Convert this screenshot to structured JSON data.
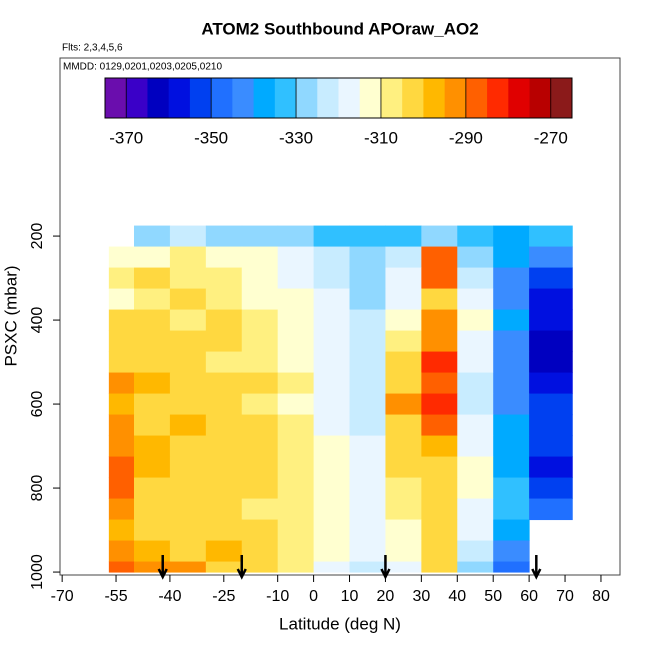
{
  "chart_data": {
    "type": "heatmap",
    "title": "ATOM2 Southbound APOraw_AO2",
    "subtitle": "Flts: 2,3,4,5,6",
    "annotation": "MMDD: 0129,0201,0203,0205,0210",
    "xlabel": "Latitude (deg N)",
    "ylabel": "PSXC (mbar)",
    "xlim": [
      -70.6,
      85.3
    ],
    "ylim": [
      1007,
      -224
    ],
    "xticks": [
      -70,
      -55,
      -40,
      -25,
      -10,
      0,
      10,
      20,
      30,
      40,
      50,
      60,
      70,
      80
    ],
    "yticks": [
      200,
      400,
      600,
      800,
      1000
    ],
    "x_edges": [
      -57,
      -50,
      -40,
      -30,
      -20,
      -10,
      0,
      10,
      20,
      30,
      40,
      50,
      60,
      72
    ],
    "y_edges": [
      175,
      225,
      275,
      325,
      375,
      425,
      475,
      525,
      575,
      625,
      675,
      725,
      775,
      825,
      875,
      925,
      975,
      1000
    ],
    "z": [
      [
        null,
        -330,
        -325,
        -330,
        -330,
        -330,
        -335,
        -335,
        -335,
        -330,
        -335,
        -340,
        -335
      ],
      [
        -315,
        -312,
        -310,
        -312,
        -315,
        -318,
        -325,
        -330,
        -325,
        -290,
        -330,
        -340,
        -345
      ],
      [
        -310,
        -305,
        -308,
        -310,
        -315,
        -318,
        -322,
        -328,
        -320,
        -288,
        -325,
        -345,
        -355
      ],
      [
        -315,
        -310,
        -305,
        -308,
        -312,
        -315,
        -320,
        -328,
        -318,
        -300,
        -320,
        -345,
        -360
      ],
      [
        -300,
        -305,
        -308,
        -305,
        -310,
        -312,
        -318,
        -325,
        -315,
        -295,
        -315,
        -340,
        -360
      ],
      [
        -302,
        -300,
        -305,
        -305,
        -308,
        -315,
        -318,
        -322,
        -310,
        -292,
        -318,
        -345,
        -365
      ],
      [
        -300,
        -302,
        -303,
        -308,
        -310,
        -312,
        -320,
        -325,
        -305,
        -285,
        -320,
        -345,
        -362
      ],
      [
        -295,
        -298,
        -302,
        -300,
        -305,
        -310,
        -318,
        -322,
        -300,
        -290,
        -325,
        -345,
        -360
      ],
      [
        -298,
        -300,
        -302,
        -305,
        -308,
        -312,
        -320,
        -325,
        -295,
        -282,
        -325,
        -342,
        -355
      ],
      [
        -295,
        -300,
        -298,
        -300,
        -303,
        -308,
        -318,
        -322,
        -300,
        -290,
        -320,
        -340,
        -355
      ],
      [
        -293,
        -297,
        -300,
        -300,
        -302,
        -308,
        -315,
        -320,
        -302,
        -298,
        -318,
        -338,
        -355
      ],
      [
        -288,
        -298,
        -300,
        -300,
        -302,
        -308,
        -315,
        -318,
        -305,
        -300,
        -315,
        -338,
        -358
      ],
      [
        -290,
        -300,
        -302,
        -303,
        -305,
        -310,
        -315,
        -320,
        -308,
        -302,
        -315,
        -335,
        -352
      ],
      [
        -295,
        -302,
        -303,
        -302,
        -306,
        -310,
        -315,
        -320,
        -310,
        -305,
        -318,
        -335,
        -350
      ],
      [
        -298,
        -302,
        -305,
        -303,
        -305,
        -310,
        -312,
        -318,
        -312,
        -305,
        -320,
        -340,
        null
      ],
      [
        -295,
        -298,
        -300,
        -298,
        -300,
        -308,
        -315,
        -320,
        -315,
        -300,
        -325,
        -345,
        null
      ],
      [
        -290,
        -292,
        -295,
        -300,
        -302,
        -310,
        -318,
        -322,
        -318,
        -305,
        -330,
        -350,
        null
      ]
    ],
    "clim": [
      -375,
      -265
    ],
    "colors": [
      "#6a0dad",
      "#3a00c8",
      "#0000c0",
      "#0010e0",
      "#0040f0",
      "#2070ff",
      "#3a8cff",
      "#00aaff",
      "#30c0ff",
      "#90d8ff",
      "#c8ecff",
      "#eaf6ff",
      "#ffffd0",
      "#fff080",
      "#ffd840",
      "#ffb800",
      "#ff9000",
      "#ff6000",
      "#ff2a00",
      "#e00000",
      "#b80000",
      "#8b1a1a"
    ],
    "cticks": [
      -370,
      -350,
      -330,
      -310,
      -290,
      -270
    ],
    "arrows_x": [
      -42,
      -20,
      20,
      62
    ]
  }
}
